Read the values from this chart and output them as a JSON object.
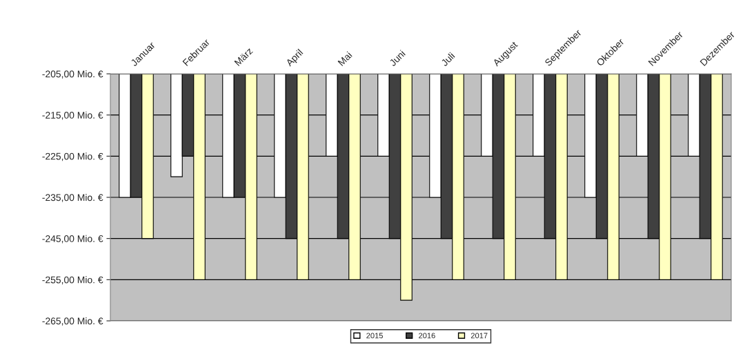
{
  "chart_data": {
    "type": "bar",
    "categories": [
      "Januar",
      "Februar",
      "März",
      "April",
      "Mai",
      "Juni",
      "Juli",
      "August",
      "September",
      "Oktober",
      "November",
      "Dezember"
    ],
    "series": [
      {
        "name": "2015",
        "color": "#ffffff",
        "values": [
          -235,
          -230,
          -235,
          -235,
          -225,
          -225,
          -235,
          -225,
          -225,
          -235,
          -225,
          -225
        ]
      },
      {
        "name": "2016",
        "color": "#404040",
        "values": [
          -235,
          -225,
          -235,
          -245,
          -245,
          -245,
          -245,
          -245,
          -245,
          -245,
          -245,
          -245
        ]
      },
      {
        "name": "2017",
        "color": "#ffffc0",
        "values": [
          -245,
          -255,
          -255,
          -255,
          -255,
          -260,
          -255,
          -255,
          -255,
          -255,
          -255,
          -255
        ]
      }
    ],
    "ylim": [
      -265,
      -205
    ],
    "yticks": [
      {
        "value": -205,
        "label": "-205,00 Mio. €"
      },
      {
        "value": -215,
        "label": "-215,00 Mio. €"
      },
      {
        "value": -225,
        "label": "-225,00 Mio. €"
      },
      {
        "value": -235,
        "label": "-235,00 Mio. €"
      },
      {
        "value": -245,
        "label": "-245,00 Mio. €"
      },
      {
        "value": -255,
        "label": "-255,00 Mio. €"
      },
      {
        "value": -265,
        "label": "-265,00 Mio. €"
      }
    ],
    "grid": "y",
    "legend": "bottom"
  }
}
